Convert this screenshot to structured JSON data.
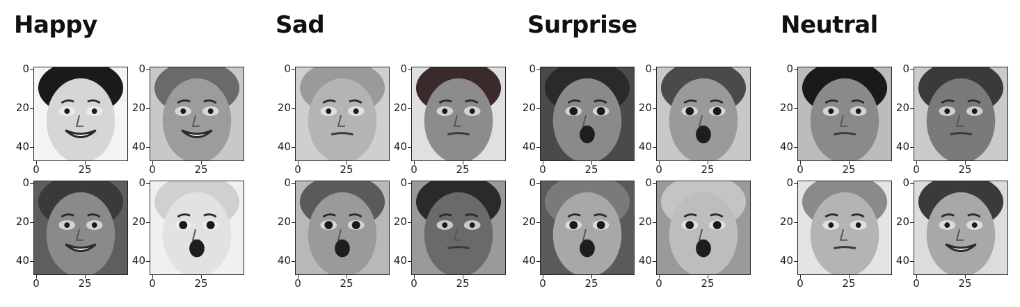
{
  "groups": [
    {
      "title": "Happy",
      "images": [
        {
          "shade": "#d6d6d6",
          "bg": "#f4f4f4",
          "hair": "#1a1a1a",
          "expr": "smile"
        },
        {
          "shade": "#9c9c9c",
          "bg": "#c8c8c8",
          "hair": "#6a6a6a",
          "expr": "smile"
        },
        {
          "shade": "#8a8a8a",
          "bg": "#5e5e5e",
          "hair": "#3a3a3a",
          "expr": "smile"
        },
        {
          "shade": "#e2e2e2",
          "bg": "#f0f0f0",
          "hair": "#d0d0d0",
          "expr": "open"
        }
      ]
    },
    {
      "title": "Sad",
      "images": [
        {
          "shade": "#b4b4b4",
          "bg": "#cfcfcf",
          "hair": "#9a9a9a",
          "expr": "flat"
        },
        {
          "shade": "#8c8c8c",
          "bg": "#e0e0e0",
          "hair": "#3a2a2a",
          "expr": "flat"
        },
        {
          "shade": "#9a9a9a",
          "bg": "#b8b8b8",
          "hair": "#5a5a5a",
          "expr": "open"
        },
        {
          "shade": "#6a6a6a",
          "bg": "#9a9a9a",
          "hair": "#2a2a2a",
          "expr": "flat"
        }
      ]
    },
    {
      "title": "Surprise",
      "images": [
        {
          "shade": "#8a8a8a",
          "bg": "#4a4a4a",
          "hair": "#2a2a2a",
          "expr": "open"
        },
        {
          "shade": "#9a9a9a",
          "bg": "#c8c8c8",
          "hair": "#4a4a4a",
          "expr": "open"
        },
        {
          "shade": "#a8a8a8",
          "bg": "#5a5a5a",
          "hair": "#7a7a7a",
          "expr": "open"
        },
        {
          "shade": "#bdbdbd",
          "bg": "#9a9a9a",
          "hair": "#c4c4c4",
          "expr": "open"
        }
      ]
    },
    {
      "title": "Neutral",
      "images": [
        {
          "shade": "#8a8a8a",
          "bg": "#bcbcbc",
          "hair": "#1a1a1a",
          "expr": "flat"
        },
        {
          "shade": "#7a7a7a",
          "bg": "#cacaca",
          "hair": "#3a3a3a",
          "expr": "flat"
        },
        {
          "shade": "#b4b4b4",
          "bg": "#e4e4e4",
          "hair": "#8a8a8a",
          "expr": "flat"
        },
        {
          "shade": "#a8a8a8",
          "bg": "#dcdcdc",
          "hair": "#3a3a3a",
          "expr": "smile"
        }
      ]
    }
  ],
  "axis": {
    "yticks": [
      "0",
      "20",
      "40"
    ],
    "xticks": [
      "0",
      "25"
    ]
  }
}
